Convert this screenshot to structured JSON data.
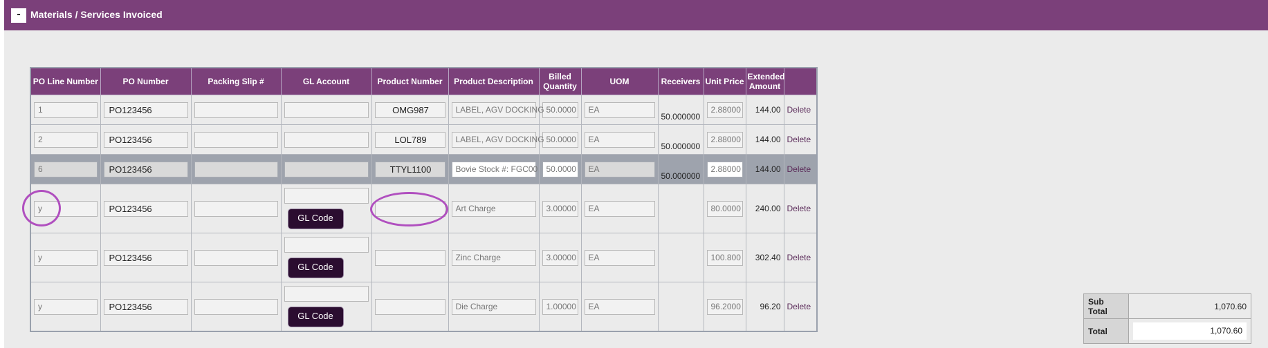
{
  "section": {
    "toggle_label": "-",
    "title": "Materials / Services Invoiced"
  },
  "headers": [
    "PO Line Number",
    "PO Number",
    "Packing Slip #",
    "GL Account",
    "Product Number",
    "Product Description",
    "Billed Quantity",
    "UOM",
    "Receivers",
    "Unit Price",
    "Extended Amount",
    ""
  ],
  "rows": [
    {
      "line": "1",
      "po": "PO123456",
      "packing": "",
      "gl": "",
      "product": "OMG987",
      "desc": "LABEL, AGV DOCKING",
      "qty": "50.0000",
      "uom": "EA",
      "receivers": "50.000000",
      "price": "2.88000",
      "amount": "144.00",
      "delete": "Delete"
    },
    {
      "line": "2",
      "po": "PO123456",
      "packing": "",
      "gl": "",
      "product": "LOL789",
      "desc": "LABEL, AGV DOCKING",
      "qty": "50.0000",
      "uom": "EA",
      "receivers": "50.000000",
      "price": "2.88000",
      "amount": "144.00",
      "delete": "Delete"
    },
    {
      "line": "6",
      "po": "PO123456",
      "packing": "",
      "gl": "",
      "product": "TTYL1100",
      "desc": "Bovie Stock #: FGC00",
      "qty": "50.0000",
      "uom": "EA",
      "receivers": "50.000000",
      "price": "2.88000",
      "amount": "144.00",
      "delete": "Delete"
    },
    {
      "line": "y",
      "po": "PO123456",
      "packing": "",
      "gl": "",
      "gl_button": "GL Code",
      "product": "",
      "desc": "Art Charge",
      "qty": "3.00000",
      "uom": "EA",
      "receivers": "",
      "price": "80.0000",
      "amount": "240.00",
      "delete": "Delete"
    },
    {
      "line": "y",
      "po": "PO123456",
      "packing": "",
      "gl": "",
      "gl_button": "GL Code",
      "product": "",
      "desc": "Zinc Charge",
      "qty": "3.00000",
      "uom": "EA",
      "receivers": "",
      "price": "100.800",
      "amount": "302.40",
      "delete": "Delete"
    },
    {
      "line": "y",
      "po": "PO123456",
      "packing": "",
      "gl": "",
      "gl_button": "GL Code",
      "product": "",
      "desc": "Die Charge",
      "qty": "1.00000",
      "uom": "EA",
      "receivers": "",
      "price": "96.2000",
      "amount": "96.20",
      "delete": "Delete"
    }
  ],
  "totals": {
    "subtotal_label": "Sub Total",
    "subtotal_value": "1,070.60",
    "total_label": "Total",
    "total_value": "1,070.60"
  },
  "colors": {
    "header_bg": "#7b407a",
    "gl_button_bg": "#2b0d30",
    "annotation_ring": "#b04fbf",
    "selected_row": "#9ea3ad"
  }
}
